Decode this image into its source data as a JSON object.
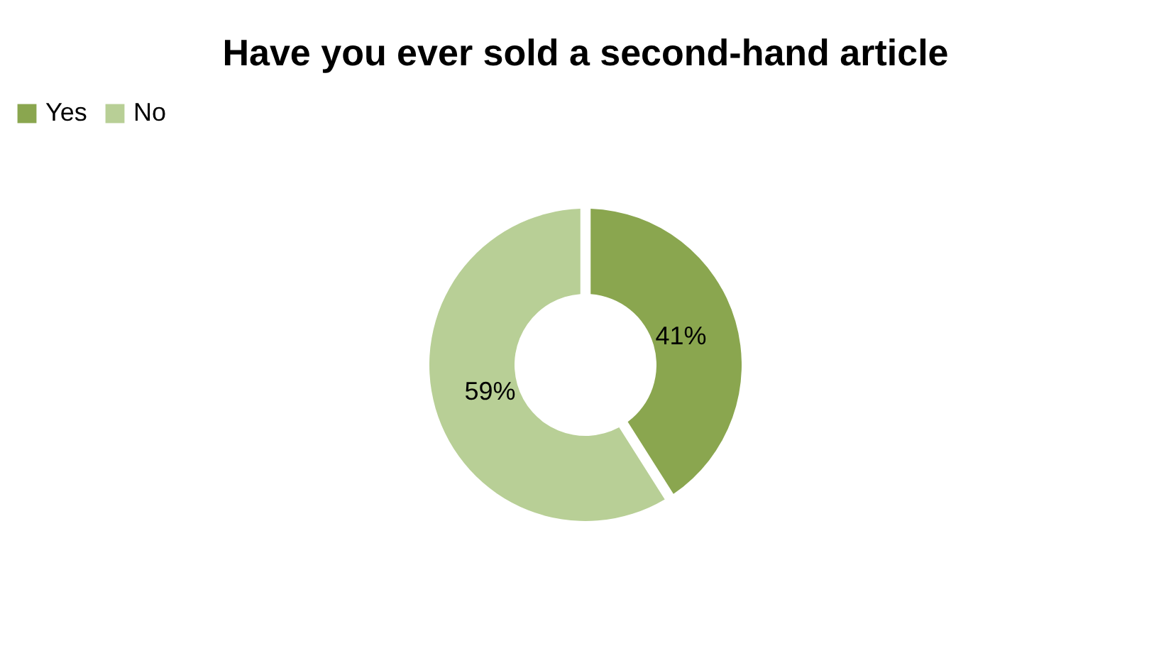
{
  "chart_data": {
    "type": "donut",
    "title": "Have you ever sold a second-hand article",
    "categories": [
      "Yes",
      "No"
    ],
    "values": [
      41,
      59
    ],
    "colors": [
      "#8aa64f",
      "#b8cf96"
    ],
    "value_labels": [
      "41%",
      "59%"
    ],
    "legend": "top"
  }
}
